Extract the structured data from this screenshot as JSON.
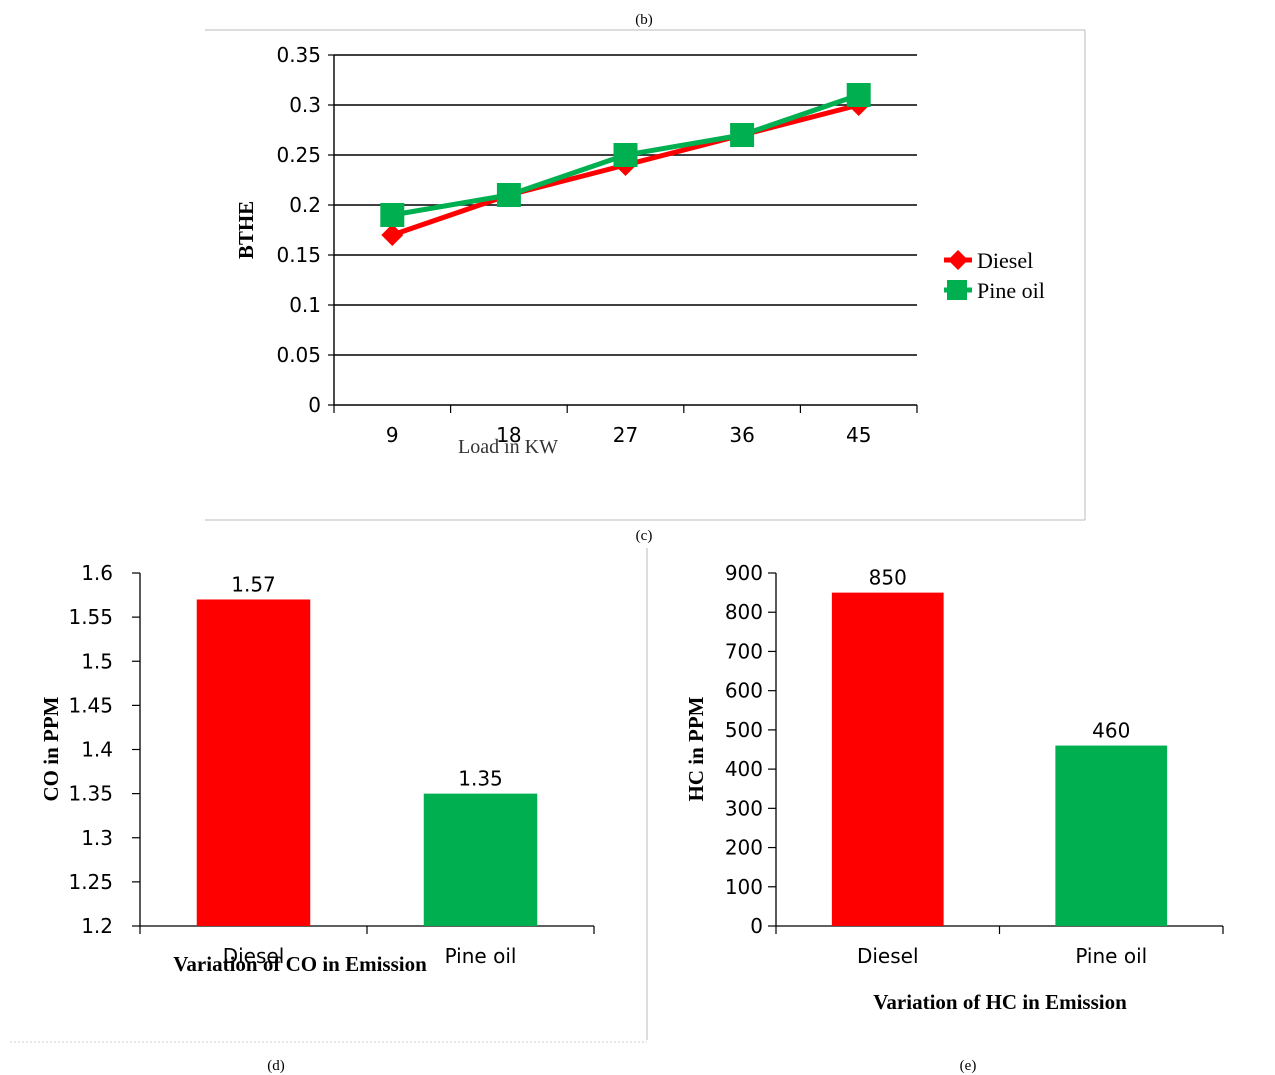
{
  "captions": {
    "b": "(b)",
    "c": "(c)",
    "d": "(d)",
    "e": "(e)"
  },
  "colors": {
    "diesel": "#ff0000",
    "pine_oil": "#00b050",
    "grid": "#000000",
    "frame": "#bbbbbb"
  },
  "chart_data": [
    {
      "type": "line",
      "x": [
        9,
        18,
        27,
        36,
        45
      ],
      "xlabel": "Load in KW",
      "ylabel": "BTHE",
      "ylim": [
        0,
        0.35
      ],
      "yticks": [
        "0",
        "0.05",
        "0.1",
        "0.15",
        "0.2",
        "0.25",
        "0.3",
        "0.35"
      ],
      "grid": true,
      "legend": "right",
      "series": [
        {
          "name": "Diesel",
          "values": [
            0.17,
            0.21,
            0.24,
            0.27,
            0.3
          ],
          "marker": "diamond"
        },
        {
          "name": "Pine oil",
          "values": [
            0.19,
            0.21,
            0.25,
            0.27,
            0.31
          ],
          "marker": "square"
        }
      ]
    },
    {
      "type": "bar",
      "categories": [
        "Diesel",
        "Pine oil"
      ],
      "values": [
        1.57,
        1.35
      ],
      "data_labels": [
        "1.57",
        "1.35"
      ],
      "xlabel": "Variation of CO in Emission",
      "ylabel": "CO in PPM",
      "ylim": [
        1.2,
        1.6
      ],
      "yticks": [
        "1.2",
        "1.25",
        "1.3",
        "1.35",
        "1.4",
        "1.45",
        "1.5",
        "1.55",
        "1.6"
      ]
    },
    {
      "type": "bar",
      "categories": [
        "Diesel",
        "Pine oil"
      ],
      "values": [
        850,
        460
      ],
      "data_labels": [
        "850",
        "460"
      ],
      "xlabel": "Variation of HC in Emission",
      "ylabel": "HC in PPM",
      "ylim": [
        0,
        900
      ],
      "yticks": [
        "0",
        "100",
        "200",
        "300",
        "400",
        "500",
        "600",
        "700",
        "800",
        "900"
      ]
    }
  ]
}
